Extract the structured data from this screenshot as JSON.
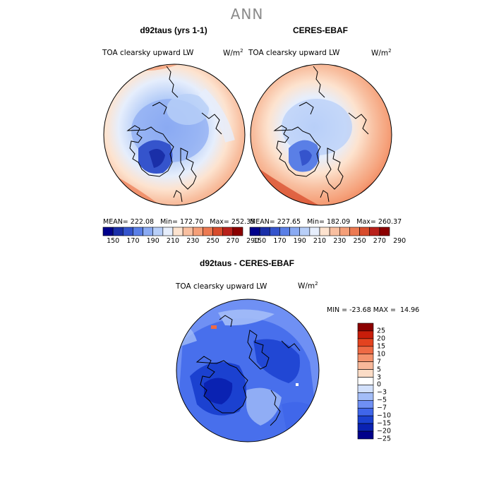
{
  "title": "ANN",
  "colors": {
    "abs_scale": [
      "#00008b",
      "#1a2fa8",
      "#3554cc",
      "#5a7fe6",
      "#8aaaf2",
      "#b8cff8",
      "#e6eefc",
      "#fde3cf",
      "#f8bfa0",
      "#f59f78",
      "#ec7a52",
      "#d84c2c",
      "#b8201a",
      "#8b0000"
    ],
    "diff_scale": [
      "#00008b",
      "#0a22b2",
      "#1b41d0",
      "#3f66ea",
      "#6f90f4",
      "#a3bdf8",
      "#d2e0fb",
      "#ffffff",
      "#fbdcc6",
      "#f8b89a",
      "#f4926c",
      "#ee6a44",
      "#e3431f",
      "#c81d0a",
      "#8b0000"
    ]
  },
  "panels": [
    {
      "title": "d92taus (yrs 1-1)",
      "field": "TOA clearsky upward LW",
      "units": "W/m",
      "units_exp": "2",
      "mean_label": "MEAN=",
      "mean": "222.08",
      "min_label": "Min=",
      "min": "172.70",
      "max_label": "Max=",
      "max": "252.35",
      "colorbar_ticks": [
        "150",
        "170",
        "190",
        "210",
        "230",
        "250",
        "270",
        "290"
      ]
    },
    {
      "title": "CERES-EBAF",
      "field": "TOA clearsky upward LW",
      "units": "W/m",
      "units_exp": "2",
      "mean_label": "MEAN=",
      "mean": "227.65",
      "min_label": "Min=",
      "min": "182.09",
      "max_label": "Max=",
      "max": "260.37",
      "colorbar_ticks": [
        "150",
        "170",
        "190",
        "210",
        "230",
        "250",
        "270",
        "290"
      ]
    }
  ],
  "diff_panel": {
    "title": "d92taus - CERES-EBAF",
    "field": "TOA clearsky upward LW",
    "units": "W/m",
    "units_exp": "2",
    "min_label": "MIN =",
    "min": "-23.68",
    "max_label": "MAX =",
    "max": "14.96",
    "colorbar_labels": [
      "25",
      "20",
      "15",
      "10",
      "7",
      "5",
      "3",
      "0",
      "-3",
      "-5",
      "-7",
      "-10",
      "-15",
      "-20",
      "-25"
    ]
  }
}
